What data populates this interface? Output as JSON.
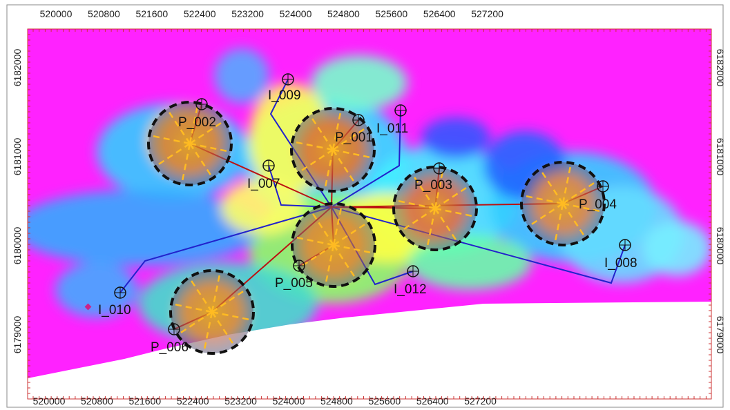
{
  "x_axis_labels": [
    "520000",
    "520800",
    "521600",
    "522400",
    "523200",
    "524000",
    "524800",
    "525600",
    "526400",
    "527200"
  ],
  "y_axis_labels": [
    "6182000",
    "6181000",
    "6180000",
    "6179000"
  ],
  "wells": [
    {
      "label": "P_001"
    },
    {
      "label": "P_002"
    },
    {
      "label": "P_003"
    },
    {
      "label": "P_004"
    },
    {
      "label": "P_005"
    },
    {
      "label": "P_006"
    },
    {
      "label": "I_007"
    },
    {
      "label": "I_008"
    },
    {
      "label": "I_009"
    },
    {
      "label": "I_010"
    },
    {
      "label": "I_011"
    },
    {
      "label": "I_012"
    }
  ]
}
